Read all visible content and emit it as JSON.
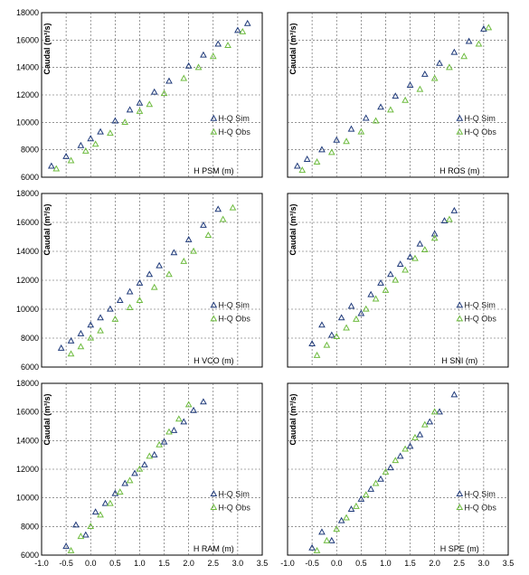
{
  "colors": {
    "sim": "#1f3a7a",
    "obs": "#6dbb3e",
    "grid": "#555555",
    "frame": "#000000"
  },
  "chart_data": [
    {
      "type": "scatter",
      "panel": "top-left",
      "xlabel": "H PSM (m)",
      "ylabel": "Caudal (m³/s)",
      "xlim": [
        -1.0,
        3.5
      ],
      "ylim": [
        6000,
        18000
      ],
      "grid": true,
      "legend_position": "right",
      "x_ticks": [],
      "y_ticks": [
        "6000",
        "8000",
        "10000",
        "12000",
        "14000",
        "16000",
        "18000"
      ],
      "series": [
        {
          "name": "H-Q Sim",
          "marker": "triangle-open",
          "color": "#1f3a7a",
          "x": [
            -0.8,
            -0.5,
            -0.2,
            0.0,
            0.2,
            0.5,
            0.8,
            1.0,
            1.3,
            1.6,
            2.0,
            2.3,
            2.6,
            3.0,
            3.2
          ],
          "y": [
            6800,
            7500,
            8300,
            8800,
            9300,
            10100,
            10900,
            11400,
            12200,
            13000,
            14100,
            14900,
            15700,
            16700,
            17200
          ]
        },
        {
          "name": "H-Q Obs",
          "marker": "triangle-open",
          "color": "#6dbb3e",
          "x": [
            -0.7,
            -0.4,
            -0.1,
            0.1,
            0.4,
            0.7,
            1.0,
            1.2,
            1.5,
            1.9,
            2.2,
            2.5,
            2.8,
            3.1
          ],
          "y": [
            6600,
            7200,
            7900,
            8400,
            9200,
            10000,
            10800,
            11300,
            12100,
            13200,
            14000,
            14800,
            15600,
            16600
          ]
        }
      ]
    },
    {
      "type": "scatter",
      "panel": "top-right",
      "xlabel": "H ROS (m)",
      "ylabel": "Caudal (m³/s)",
      "xlim": [
        -1.0,
        3.5
      ],
      "ylim": [
        6000,
        18000
      ],
      "grid": true,
      "legend_position": "right",
      "x_ticks": [],
      "y_ticks": [],
      "series": [
        {
          "name": "H-Q Sim",
          "marker": "triangle-open",
          "color": "#1f3a7a",
          "x": [
            -0.8,
            -0.6,
            -0.3,
            0.0,
            0.3,
            0.6,
            0.9,
            1.2,
            1.5,
            1.8,
            2.1,
            2.4,
            2.7,
            3.0
          ],
          "y": [
            6800,
            7300,
            8000,
            8700,
            9500,
            10300,
            11100,
            11900,
            12700,
            13500,
            14300,
            15100,
            15900,
            16800
          ]
        },
        {
          "name": "H-Q Obs",
          "marker": "triangle-open",
          "color": "#6dbb3e",
          "x": [
            -0.7,
            -0.4,
            -0.1,
            0.2,
            0.5,
            0.8,
            1.1,
            1.4,
            1.7,
            2.0,
            2.3,
            2.6,
            2.9,
            3.1
          ],
          "y": [
            6500,
            7100,
            7800,
            8600,
            9300,
            10100,
            10900,
            11600,
            12400,
            13200,
            14000,
            14800,
            15700,
            16900
          ]
        }
      ]
    },
    {
      "type": "scatter",
      "panel": "middle-left",
      "xlabel": "H VCO (m)",
      "ylabel": "Caudal (m³/s)",
      "xlim": [
        -1.0,
        3.5
      ],
      "ylim": [
        6000,
        18000
      ],
      "grid": true,
      "legend_position": "right",
      "x_ticks": [],
      "y_ticks": [
        "6000",
        "8000",
        "10000",
        "12000",
        "14000",
        "16000",
        "18000"
      ],
      "series": [
        {
          "name": "H-Q Sim",
          "marker": "triangle-open",
          "color": "#1f3a7a",
          "x": [
            -0.6,
            -0.4,
            -0.2,
            0.0,
            0.2,
            0.4,
            0.6,
            0.8,
            1.0,
            1.2,
            1.4,
            1.7,
            2.0,
            2.3,
            2.6
          ],
          "y": [
            7300,
            7800,
            8300,
            8900,
            9400,
            10000,
            10600,
            11200,
            11800,
            12400,
            13000,
            13900,
            14800,
            15800,
            16900
          ]
        },
        {
          "name": "H-Q Obs",
          "marker": "triangle-open",
          "color": "#6dbb3e",
          "x": [
            -0.4,
            -0.2,
            0.0,
            0.2,
            0.5,
            0.8,
            1.0,
            1.3,
            1.6,
            1.9,
            2.1,
            2.4,
            2.7,
            2.9
          ],
          "y": [
            6900,
            7400,
            8000,
            8500,
            9300,
            10100,
            10600,
            11500,
            12400,
            13300,
            14000,
            15100,
            16200,
            17000
          ]
        }
      ]
    },
    {
      "type": "scatter",
      "panel": "middle-right",
      "xlabel": "H SNI (m)",
      "ylabel": "Caudal (m³/s)",
      "xlim": [
        -1.0,
        3.5
      ],
      "ylim": [
        6000,
        18000
      ],
      "grid": true,
      "legend_position": "right",
      "x_ticks": [],
      "y_ticks": [],
      "series": [
        {
          "name": "H-Q Sim",
          "marker": "triangle-open",
          "color": "#1f3a7a",
          "x": [
            -0.5,
            -0.3,
            -0.1,
            0.1,
            0.3,
            0.5,
            0.7,
            0.9,
            1.1,
            1.3,
            1.5,
            1.7,
            2.0,
            2.2,
            2.4
          ],
          "y": [
            7600,
            8900,
            8200,
            9400,
            10200,
            9700,
            11000,
            11800,
            12400,
            13100,
            13600,
            14500,
            15200,
            16100,
            16800
          ]
        },
        {
          "name": "H-Q Obs",
          "marker": "triangle-open",
          "color": "#6dbb3e",
          "x": [
            -0.4,
            -0.2,
            0.0,
            0.2,
            0.4,
            0.6,
            0.8,
            1.0,
            1.2,
            1.4,
            1.6,
            1.8,
            2.0,
            2.3
          ],
          "y": [
            6800,
            7500,
            8100,
            8700,
            9300,
            10000,
            10700,
            11300,
            12000,
            12700,
            13500,
            14100,
            14900,
            16200
          ]
        }
      ]
    },
    {
      "type": "scatter",
      "panel": "bottom-left",
      "xlabel": "H RAM (m)",
      "ylabel": "Caudal (m³/s)",
      "xlim": [
        -1.0,
        3.5
      ],
      "ylim": [
        6000,
        18000
      ],
      "grid": true,
      "legend_position": "right",
      "x_ticks": [
        "-1.0",
        "-0.5",
        "0.0",
        "0.5",
        "1.0",
        "1.5",
        "2.0",
        "2.5",
        "3.0",
        "3.5"
      ],
      "y_ticks": [
        "6000",
        "8000",
        "10000",
        "12000",
        "14000",
        "16000",
        "18000"
      ],
      "series": [
        {
          "name": "H-Q Sim",
          "marker": "triangle-open",
          "color": "#1f3a7a",
          "x": [
            -0.5,
            -0.3,
            -0.1,
            0.1,
            0.3,
            0.5,
            0.7,
            0.9,
            1.1,
            1.3,
            1.5,
            1.7,
            1.9,
            2.1,
            2.3
          ],
          "y": [
            6600,
            8100,
            7400,
            9000,
            9600,
            10300,
            11000,
            11700,
            12300,
            13000,
            13900,
            14700,
            15300,
            16100,
            16700
          ]
        },
        {
          "name": "H-Q Obs",
          "marker": "triangle-open",
          "color": "#6dbb3e",
          "x": [
            -0.4,
            -0.2,
            0.0,
            0.2,
            0.4,
            0.6,
            0.8,
            1.0,
            1.2,
            1.4,
            1.6,
            1.8,
            2.0
          ],
          "y": [
            6300,
            7300,
            8000,
            8800,
            9600,
            10400,
            11200,
            12000,
            12900,
            13700,
            14600,
            15500,
            16500
          ]
        }
      ]
    },
    {
      "type": "scatter",
      "panel": "bottom-right",
      "xlabel": "H SPE (m)",
      "ylabel": "Caudal (m³/s)",
      "xlim": [
        -1.0,
        3.5
      ],
      "ylim": [
        6000,
        18000
      ],
      "grid": true,
      "legend_position": "right",
      "x_ticks": [
        "-1.0",
        "-0.5",
        "0.0",
        "0.5",
        "1.0",
        "1.5",
        "2.0",
        "2.5",
        "3.0",
        "3.5"
      ],
      "y_ticks": [],
      "series": [
        {
          "name": "H-Q Sim",
          "marker": "triangle-open",
          "color": "#1f3a7a",
          "x": [
            -0.5,
            -0.3,
            -0.1,
            0.1,
            0.3,
            0.5,
            0.7,
            0.9,
            1.1,
            1.3,
            1.5,
            1.7,
            1.9,
            2.1,
            2.4
          ],
          "y": [
            6500,
            7600,
            7000,
            8400,
            9200,
            9900,
            10600,
            11300,
            12100,
            12900,
            13600,
            14400,
            15300,
            16000,
            17200
          ]
        },
        {
          "name": "H-Q Obs",
          "marker": "triangle-open",
          "color": "#6dbb3e",
          "x": [
            -0.4,
            -0.2,
            0.0,
            0.2,
            0.4,
            0.6,
            0.8,
            1.0,
            1.2,
            1.4,
            1.6,
            1.8,
            2.0
          ],
          "y": [
            6300,
            7000,
            7800,
            8600,
            9400,
            10200,
            11000,
            11800,
            12600,
            13400,
            14200,
            15100,
            16000
          ]
        }
      ]
    }
  ]
}
